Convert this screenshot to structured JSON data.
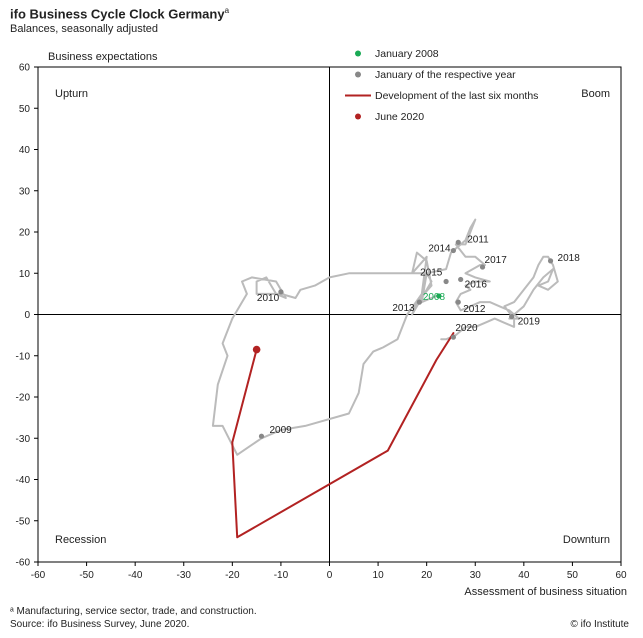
{
  "chart_data": {
    "type": "line",
    "title": "ifo Business Cycle Clock Germany",
    "title_sup": "a",
    "subtitle": "Balances, seasonally adjusted",
    "xlabel": "Assessment of business situation",
    "ylabel": "Business expectations",
    "xlim": [
      -60,
      60
    ],
    "ylim": [
      -60,
      60
    ],
    "xticks": [
      -60,
      -50,
      -40,
      -30,
      -20,
      -10,
      0,
      10,
      20,
      30,
      40,
      50,
      60
    ],
    "yticks": [
      -60,
      -50,
      -40,
      -30,
      -20,
      -10,
      0,
      10,
      20,
      30,
      40,
      50,
      60
    ],
    "quadrants": {
      "upturn": "Upturn",
      "boom": "Boom",
      "recession": "Recession",
      "downturn": "Downturn"
    },
    "legend": [
      {
        "label": "January 2008",
        "kind": "dot",
        "color": "#1aaa55"
      },
      {
        "label": "January of the respective year",
        "kind": "dot",
        "color": "#888888"
      },
      {
        "label": "Development of the last six months",
        "kind": "line",
        "color": "#b22222"
      },
      {
        "label": "June 2020",
        "kind": "dot",
        "color": "#b22222"
      }
    ],
    "series": [
      {
        "color": "#bbbbbb",
        "points": [
          [
            22,
            4.5
          ],
          [
            19,
            3
          ],
          [
            20,
            10
          ],
          [
            21,
            8
          ],
          [
            17,
            0
          ],
          [
            18,
            3
          ],
          [
            21,
            7
          ],
          [
            20,
            13
          ],
          [
            18,
            15
          ],
          [
            17,
            10
          ],
          [
            20,
            14
          ],
          [
            19,
            5
          ],
          [
            16,
            0
          ],
          [
            14,
            -6
          ],
          [
            11,
            -8
          ],
          [
            9,
            -9
          ],
          [
            7,
            -12
          ],
          [
            6,
            -19
          ],
          [
            4,
            -24
          ],
          [
            -5,
            -27
          ],
          [
            -10,
            -28
          ],
          [
            -14,
            -30
          ],
          [
            -19,
            -34
          ],
          [
            -22,
            -27
          ],
          [
            -24,
            -27
          ],
          [
            -23,
            -17
          ],
          [
            -21,
            -10
          ],
          [
            -22,
            -7
          ],
          [
            -20,
            -1
          ],
          [
            -17,
            5
          ],
          [
            -18,
            8
          ],
          [
            -16,
            9
          ],
          [
            -11,
            8
          ],
          [
            -9,
            4
          ],
          [
            -11,
            5
          ],
          [
            -12,
            7
          ],
          [
            -13,
            9
          ],
          [
            -15,
            8
          ],
          [
            -15,
            5
          ],
          [
            -10,
            5
          ],
          [
            -7,
            4
          ],
          [
            -6,
            6
          ],
          [
            -3,
            7
          ],
          [
            0,
            9
          ],
          [
            4,
            10
          ],
          [
            12,
            10
          ],
          [
            20,
            10
          ],
          [
            24,
            11
          ],
          [
            25,
            15
          ],
          [
            28,
            18
          ],
          [
            29,
            21
          ],
          [
            30,
            23
          ],
          [
            28,
            17
          ],
          [
            26,
            17
          ],
          [
            28,
            14
          ],
          [
            30,
            14
          ],
          [
            32,
            12
          ],
          [
            31,
            12
          ],
          [
            28,
            10
          ],
          [
            30,
            9
          ],
          [
            33,
            8
          ],
          [
            30,
            8
          ],
          [
            28,
            7
          ],
          [
            29,
            6
          ],
          [
            27,
            5
          ],
          [
            26,
            3
          ],
          [
            27,
            1
          ],
          [
            29,
            2
          ],
          [
            31,
            3
          ],
          [
            33,
            3
          ],
          [
            35,
            2
          ],
          [
            37,
            1
          ],
          [
            39,
            -1
          ],
          [
            37,
            -1
          ],
          [
            40,
            2
          ],
          [
            42,
            6
          ],
          [
            44,
            9
          ],
          [
            46,
            11
          ],
          [
            45,
            8
          ],
          [
            43,
            7
          ],
          [
            45,
            6
          ],
          [
            47,
            8
          ],
          [
            46,
            12
          ],
          [
            45,
            14
          ],
          [
            44,
            14
          ],
          [
            43,
            12
          ],
          [
            42,
            9
          ],
          [
            40,
            6
          ],
          [
            38,
            3
          ],
          [
            36,
            2
          ],
          [
            38,
            -1
          ],
          [
            38,
            -3
          ],
          [
            36,
            -2
          ],
          [
            34,
            -1
          ],
          [
            32,
            -2
          ],
          [
            30,
            -3
          ],
          [
            28,
            -3
          ],
          [
            26,
            -5
          ],
          [
            24,
            -6
          ],
          [
            23,
            -6
          ]
        ]
      },
      {
        "color": "#b22222",
        "points": [
          [
            25.5,
            -4.5
          ],
          [
            22,
            -11
          ],
          [
            12,
            -33
          ],
          [
            -19,
            -54
          ],
          [
            -20,
            -31
          ],
          [
            -15,
            -8.5
          ]
        ]
      }
    ],
    "year_points": [
      {
        "label": "2008",
        "x": 22.5,
        "y": 4.5,
        "color": "#1aaa55"
      },
      {
        "label": "2009",
        "x": -14,
        "y": -29.5,
        "color": "#888888"
      },
      {
        "label": "2010",
        "x": -10,
        "y": 5.5,
        "color": "#888888"
      },
      {
        "label": "2011",
        "x": 26.5,
        "y": 17.5,
        "color": "#888888"
      },
      {
        "label": "2012",
        "x": 26.5,
        "y": 3,
        "color": "#888888"
      },
      {
        "label": "2013",
        "x": 18.5,
        "y": 3,
        "color": "#888888"
      },
      {
        "label": "2014",
        "x": 25.5,
        "y": 15.5,
        "color": "#888888"
      },
      {
        "label": "2015",
        "x": 24,
        "y": 8,
        "color": "#888888"
      },
      {
        "label": "2016",
        "x": 27,
        "y": 8.5,
        "color": "#888888"
      },
      {
        "label": "2017",
        "x": 31.5,
        "y": 11.5,
        "color": "#888888"
      },
      {
        "label": "2018",
        "x": 45.5,
        "y": 13,
        "color": "#888888"
      },
      {
        "label": "2019",
        "x": 37.5,
        "y": -0.5,
        "color": "#888888"
      },
      {
        "label": "2020",
        "x": 25.5,
        "y": -5.5,
        "color": "#888888"
      }
    ],
    "june_2020": {
      "x": -15,
      "y": -8.5,
      "color": "#b22222"
    },
    "footnote": "ᵃ Manufacturing, service sector, trade, and construction.",
    "source": "Source: ifo Business Survey, June 2020.",
    "credit": "© ifo Institute"
  }
}
